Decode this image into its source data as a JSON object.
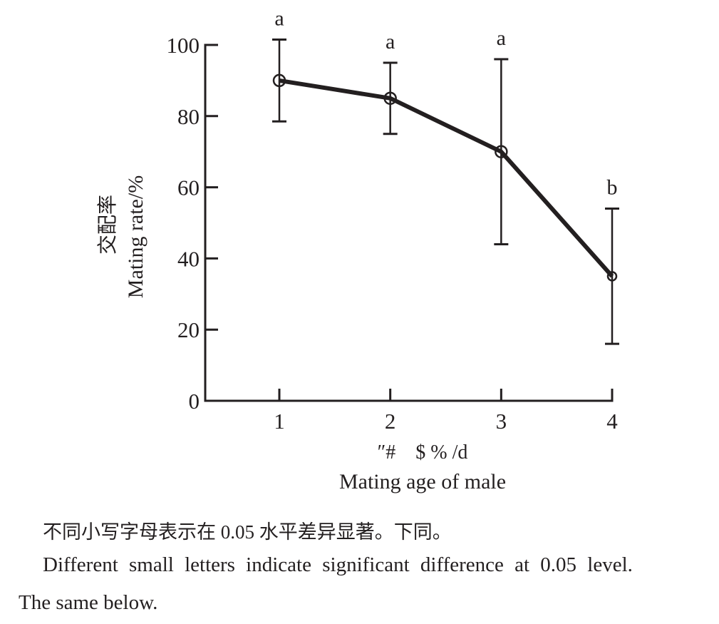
{
  "chart_data": {
    "type": "line",
    "title": "",
    "xlabel_cn": "″#　$ % /d",
    "xlabel": "Mating age of male",
    "ylabel_cn": "交配率",
    "ylabel": "Mating rate/%",
    "x": [
      1,
      2,
      3,
      4
    ],
    "x_tick_labels": [
      "1",
      "2",
      "3",
      "4"
    ],
    "ylim": [
      0,
      100
    ],
    "y_ticks": [
      0,
      20,
      40,
      60,
      80,
      100
    ],
    "y_tick_labels": [
      "0",
      "20",
      "40",
      "60",
      "80",
      "100"
    ],
    "grid": false,
    "legend": "none",
    "series": [
      {
        "name": "Mating rate",
        "values": [
          90,
          85,
          70,
          35
        ],
        "error_upper": [
          101.5,
          95,
          96,
          54
        ],
        "error_lower": [
          78.5,
          75,
          44,
          16
        ],
        "marker": "open-circle",
        "color": "#231f20"
      }
    ],
    "significance_letters": [
      "a",
      "a",
      "a",
      "b"
    ]
  },
  "caption": {
    "zh": "不同小写字母表示在 0.05 水平差异显著。下同。",
    "en_line1": "Different small letters indicate significant difference at 0.05 level.",
    "en_line2": "The same below."
  }
}
